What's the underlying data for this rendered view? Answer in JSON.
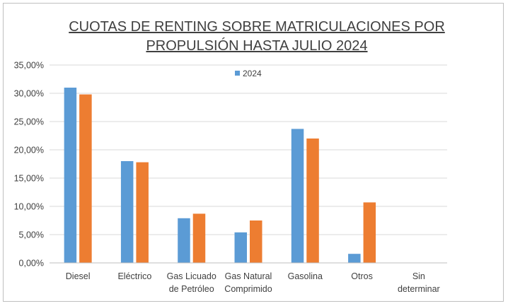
{
  "chart_data": {
    "type": "bar",
    "title": [
      "CUOTAS DE RENTING SOBRE MATRICULACIONES POR",
      "PROPULSIÓN HASTA JULIO 2024"
    ],
    "categories": [
      [
        "Diesel"
      ],
      [
        "Eléctrico"
      ],
      [
        "Gas Licuado",
        "de Petróleo"
      ],
      [
        "Gas Natural",
        "Comprimido"
      ],
      [
        "Gasolina"
      ],
      [
        "Otros"
      ],
      [
        "Sin",
        "determinar"
      ]
    ],
    "series": [
      {
        "name": "2024",
        "color": "#5b9bd5",
        "values": [
          31.0,
          18.0,
          7.9,
          5.4,
          23.7,
          1.6,
          0
        ]
      },
      {
        "color": "#ed7d31",
        "values": [
          29.8,
          17.8,
          8.7,
          7.5,
          22.0,
          10.7,
          0
        ]
      }
    ],
    "ylim": [
      0,
      35
    ],
    "ytick_step": 5,
    "ytick_labels": [
      "0,00%",
      "5,00%",
      "10,00%",
      "15,00%",
      "20,00%",
      "25,00%",
      "30,00%",
      "35,00%"
    ],
    "grid": true,
    "legend": "top-center"
  }
}
